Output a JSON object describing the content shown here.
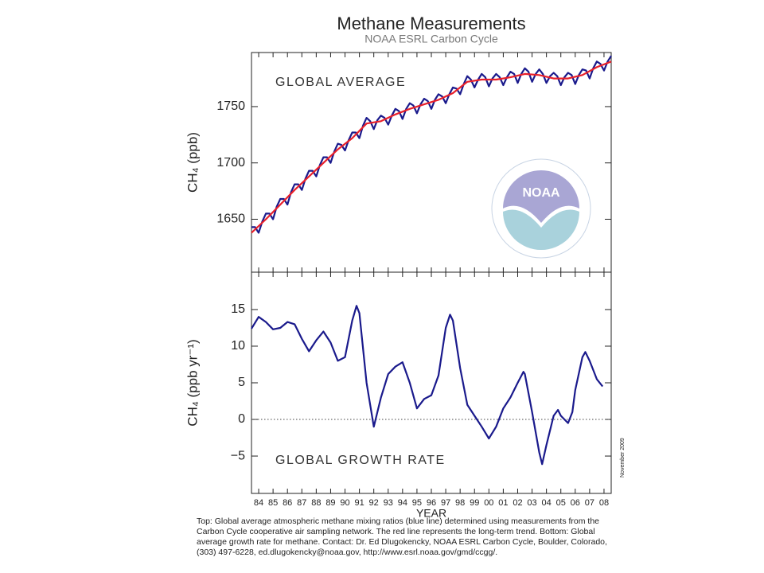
{
  "title": "Methane Measurements",
  "subtitle": "NOAA ESRL Carbon Cycle",
  "logo_text": "NOAA",
  "date_note": "November 2009",
  "caption": [
    "Top:  Global average atmospheric methane mixing ratios (blue line) determined using measurements from the",
    "Carbon Cycle cooperative air sampling network.  The red line represents the long-term trend.  Bottom:  Global",
    "average growth rate for methane.  Contact:  Dr. Ed Dlugokencky, NOAA ESRL Carbon Cycle, Boulder, Colorado,",
    "(303) 497-6228, ed.dlugokencky@noaa.gov, http://www.esrl.noaa.gov/gmd/ccgg/."
  ],
  "chart_data": [
    {
      "type": "line",
      "annotation": "GLOBAL AVERAGE",
      "ylabel": "CH₄ (ppb)",
      "xlim": [
        1984,
        2009
      ],
      "ylim": [
        1603,
        1798
      ],
      "yticks": [
        1650,
        1700,
        1750
      ],
      "series": [
        {
          "color": "#1a1a8c",
          "x": [
            1984,
            1984.25,
            1984.5,
            1984.75,
            1985,
            1985.25,
            1985.5,
            1985.75,
            1986,
            1986.25,
            1986.5,
            1986.75,
            1987,
            1987.25,
            1987.5,
            1987.75,
            1988,
            1988.25,
            1988.5,
            1988.75,
            1989,
            1989.25,
            1989.5,
            1989.75,
            1990,
            1990.25,
            1990.5,
            1990.75,
            1991,
            1991.25,
            1991.5,
            1991.75,
            1992,
            1992.25,
            1992.5,
            1992.75,
            1993,
            1993.25,
            1993.5,
            1993.75,
            1994,
            1994.25,
            1994.5,
            1994.75,
            1995,
            1995.25,
            1995.5,
            1995.75,
            1996,
            1996.25,
            1996.5,
            1996.75,
            1997,
            1997.25,
            1997.5,
            1997.75,
            1998,
            1998.25,
            1998.5,
            1998.75,
            1999,
            1999.25,
            1999.5,
            1999.75,
            2000,
            2000.25,
            2000.5,
            2000.75,
            2001,
            2001.25,
            2001.5,
            2001.75,
            2002,
            2002.25,
            2002.5,
            2002.75,
            2003,
            2003.25,
            2003.5,
            2003.75,
            2004,
            2004.25,
            2004.5,
            2004.75,
            2005,
            2005.25,
            2005.5,
            2005.75,
            2006,
            2006.25,
            2006.5,
            2006.75,
            2007,
            2007.25,
            2007.5,
            2007.75,
            2008,
            2008.25,
            2008.5,
            2008.75,
            2009
          ],
          "values": [
            1643,
            1643,
            1638,
            1648,
            1655,
            1655,
            1650,
            1661,
            1668,
            1668,
            1663,
            1674,
            1681,
            1681,
            1676,
            1686,
            1693,
            1693,
            1688,
            1698,
            1705,
            1705,
            1700,
            1710,
            1717,
            1716,
            1711,
            1720,
            1727,
            1727,
            1722,
            1733,
            1740,
            1737,
            1730,
            1738,
            1742,
            1740,
            1734,
            1742,
            1748,
            1746,
            1739,
            1748,
            1753,
            1751,
            1744,
            1752,
            1757,
            1755,
            1748,
            1756,
            1761,
            1759,
            1753,
            1761,
            1767,
            1766,
            1761,
            1770,
            1777,
            1774,
            1767,
            1774,
            1779,
            1776,
            1768,
            1775,
            1779,
            1776,
            1769,
            1776,
            1781,
            1779,
            1771,
            1779,
            1784,
            1781,
            1772,
            1779,
            1783,
            1779,
            1771,
            1777,
            1780,
            1777,
            1769,
            1776,
            1780,
            1778,
            1770,
            1778,
            1783,
            1782,
            1775,
            1784,
            1790,
            1788,
            1782,
            1790,
            1795
          ]
        },
        {
          "color": "#e8202a",
          "x": [
            1984,
            1985,
            1986,
            1987,
            1988,
            1989,
            1990,
            1991,
            1992,
            1993,
            1994,
            1995,
            1996,
            1997,
            1998,
            1999,
            2000,
            2001,
            2002,
            2003,
            2004,
            2005,
            2006,
            2007,
            2008,
            2009
          ],
          "values": [
            1638,
            1650,
            1663,
            1676,
            1688,
            1700,
            1712,
            1722,
            1735,
            1737,
            1743,
            1748,
            1752,
            1756,
            1762,
            1772,
            1774,
            1774,
            1776,
            1779,
            1778,
            1775,
            1775,
            1778,
            1785,
            1790
          ]
        }
      ]
    },
    {
      "type": "line",
      "annotation": "GLOBAL GROWTH RATE",
      "ylabel": "CH₄ (ppb yr⁻¹)",
      "xlabel": "YEAR",
      "xlim": [
        1984,
        2009
      ],
      "ylim": [
        -10.1,
        20.1
      ],
      "yticks": [
        15,
        10,
        5,
        0,
        {
          "value": -5,
          "label": "−5"
        }
      ],
      "reference_line": 0,
      "xticks": [
        {
          "value": 1984.5,
          "label": "84"
        },
        {
          "value": 1985.5,
          "label": "85"
        },
        {
          "value": 1986.5,
          "label": "86"
        },
        {
          "value": 1987.5,
          "label": "87"
        },
        {
          "value": 1988.5,
          "label": "88"
        },
        {
          "value": 1989.5,
          "label": "89"
        },
        {
          "value": 1990.5,
          "label": "90"
        },
        {
          "value": 1991.5,
          "label": "91"
        },
        {
          "value": 1992.5,
          "label": "92"
        },
        {
          "value": 1993.5,
          "label": "93"
        },
        {
          "value": 1994.5,
          "label": "94"
        },
        {
          "value": 1995.5,
          "label": "95"
        },
        {
          "value": 1996.5,
          "label": "96"
        },
        {
          "value": 1997.5,
          "label": "97"
        },
        {
          "value": 1998.5,
          "label": "98"
        },
        {
          "value": 1999.5,
          "label": "99"
        },
        {
          "value": 2000.5,
          "label": "00"
        },
        {
          "value": 2001.5,
          "label": "01"
        },
        {
          "value": 2002.5,
          "label": "02"
        },
        {
          "value": 2003.5,
          "label": "03"
        },
        {
          "value": 2004.5,
          "label": "04"
        },
        {
          "value": 2005.5,
          "label": "05"
        },
        {
          "value": 2006.5,
          "label": "06"
        },
        {
          "value": 2007.5,
          "label": "07"
        },
        {
          "value": 2008.5,
          "label": "08"
        }
      ],
      "series": [
        {
          "color": "#1a1a8c",
          "x": [
            1984,
            1984.5,
            1985,
            1985.5,
            1986,
            1986.5,
            1987,
            1987.5,
            1988,
            1988.5,
            1989,
            1989.5,
            1990,
            1990.5,
            1991,
            1991.3,
            1991.5,
            1992,
            1992.5,
            1993,
            1993.5,
            1994,
            1994.5,
            1995,
            1995.5,
            1996,
            1996.5,
            1997,
            1997.5,
            1997.8,
            1998,
            1998.5,
            1999,
            1999.5,
            2000,
            2000.5,
            2001,
            2001.5,
            2002,
            2002.5,
            2002.9,
            2003,
            2003.5,
            2004,
            2004.2,
            2004.5,
            2005,
            2005.3,
            2005.5,
            2006,
            2006.3,
            2006.5,
            2007,
            2007.2,
            2007.5,
            2008,
            2008.4
          ],
          "values": [
            12.4,
            14.0,
            13.3,
            12.3,
            12.5,
            13.3,
            13.0,
            11.0,
            9.3,
            10.8,
            12.0,
            10.5,
            8.0,
            8.5,
            13.5,
            15.5,
            14.5,
            5.0,
            -1.0,
            3.0,
            6.2,
            7.2,
            7.8,
            5.0,
            1.5,
            2.8,
            3.3,
            6.0,
            12.5,
            14.3,
            13.5,
            7.0,
            2.0,
            0.5,
            -1.0,
            -2.6,
            -1.0,
            1.5,
            3.0,
            5.0,
            6.5,
            6.2,
            1.0,
            -4.5,
            -6.1,
            -3.5,
            0.5,
            1.3,
            0.5,
            -0.5,
            1.0,
            4.0,
            8.5,
            9.2,
            8.0,
            5.5,
            4.5
          ]
        }
      ]
    }
  ]
}
